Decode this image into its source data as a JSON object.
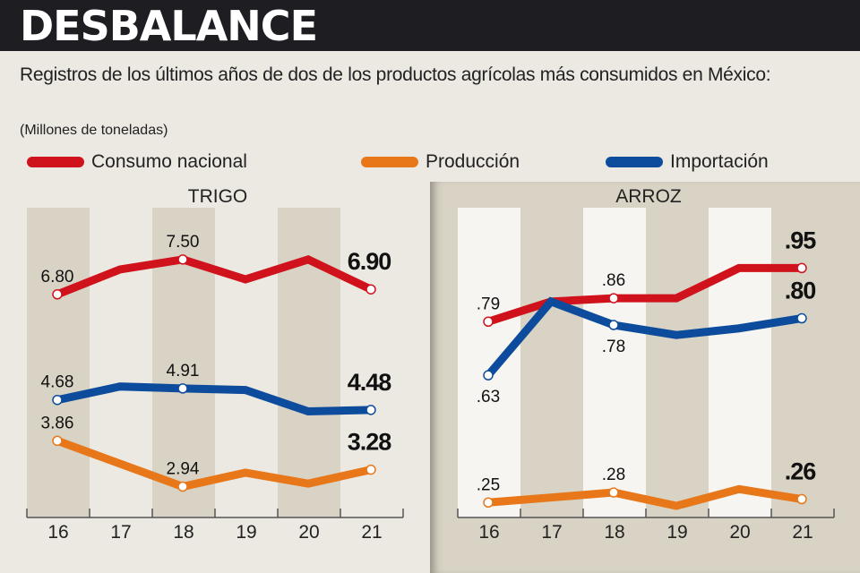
{
  "header": {
    "title": "DESBALANCE"
  },
  "subtitle": "Registros de los últimos años de dos de los productos agrícolas más consumidos en México:",
  "units": "(Millones de toneladas)",
  "legend": [
    {
      "label": "Consumo nacional",
      "color": "#d0121d"
    },
    {
      "label": "Producción",
      "color": "#e8771a"
    },
    {
      "label": "Importación",
      "color": "#0d4c9c"
    }
  ],
  "chart_data": [
    {
      "type": "line",
      "title": "TRIGO",
      "categories": [
        "16",
        "17",
        "18",
        "19",
        "20",
        "21"
      ],
      "ylim": [
        2.5,
        8.0
      ],
      "series": [
        {
          "name": "Consumo nacional",
          "color": "#d0121d",
          "values": [
            6.8,
            7.3,
            7.5,
            7.1,
            7.5,
            6.9
          ],
          "labels": [
            "6.80",
            null,
            "7.50",
            null,
            null,
            "6.90"
          ]
        },
        {
          "name": "Importación",
          "color": "#0d4c9c",
          "values": [
            4.68,
            4.95,
            4.91,
            4.88,
            4.45,
            4.48
          ],
          "labels": [
            "4.68",
            null,
            "4.91",
            null,
            null,
            "4.48"
          ]
        },
        {
          "name": "Producción",
          "color": "#e8771a",
          "values": [
            3.86,
            3.4,
            2.94,
            3.22,
            3.0,
            3.28
          ],
          "labels": [
            "3.86",
            null,
            "2.94",
            null,
            null,
            "3.28"
          ]
        }
      ]
    },
    {
      "type": "line",
      "title": "ARROZ",
      "categories": [
        "16",
        "17",
        "18",
        "19",
        "20",
        "21"
      ],
      "ylim": [
        0.2,
        1.05
      ],
      "series": [
        {
          "name": "Consumo nacional",
          "color": "#d0121d",
          "values": [
            0.79,
            0.85,
            0.86,
            0.86,
            0.95,
            0.95
          ],
          "labels": [
            ".79",
            null,
            ".86",
            null,
            null,
            ".95"
          ]
        },
        {
          "name": "Importación",
          "color": "#0d4c9c",
          "values": [
            0.63,
            0.85,
            0.78,
            0.75,
            0.77,
            0.8
          ],
          "labels": [
            ".63",
            null,
            ".78",
            null,
            null,
            ".80"
          ]
        },
        {
          "name": "Producción",
          "color": "#e8771a",
          "values": [
            0.25,
            0.265,
            0.28,
            0.24,
            0.29,
            0.26
          ],
          "labels": [
            ".25",
            null,
            ".28",
            null,
            null,
            ".26"
          ]
        }
      ]
    }
  ]
}
